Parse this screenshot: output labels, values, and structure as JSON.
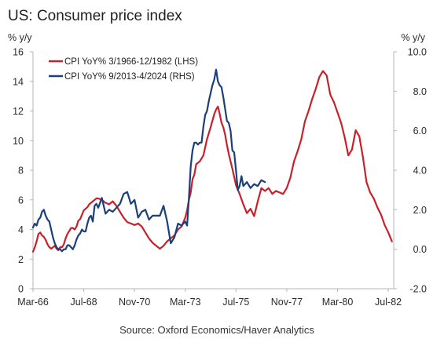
{
  "chart_data": {
    "type": "line",
    "title": "US: Consumer price index",
    "source": "Source: Oxford Economics/Haver Analytics",
    "left_axis": {
      "unit": "% y/y",
      "ylim": [
        0,
        16
      ],
      "ticks": [
        "0",
        "2",
        "4",
        "6",
        "8",
        "10",
        "12",
        "14",
        "16"
      ]
    },
    "right_axis": {
      "unit": "% y/y",
      "ylim": [
        -2,
        10
      ],
      "ticks": [
        "-2.0",
        "0.0",
        "2.0",
        "4.0",
        "6.0",
        "8.0",
        "10.0"
      ]
    },
    "x_axis": {
      "ticks": [
        "Mar-66",
        "Jul-68",
        "Nov-70",
        "Mar-73",
        "Jul-75",
        "Nov-77",
        "Mar-80",
        "Jul-82"
      ],
      "range_months": [
        0,
        199
      ]
    },
    "legend": {
      "placement": "top-left"
    },
    "colors": {
      "lhs": "#c8202a",
      "rhs": "#1b3f7a"
    },
    "series": [
      {
        "name": "CPI YoY% 3/1966-12/1982 (LHS)",
        "axis": "left",
        "x": [
          0,
          1,
          2,
          3,
          4,
          5,
          6,
          7,
          8,
          9,
          10,
          11,
          12,
          13,
          14,
          15,
          16,
          17,
          18,
          19,
          20,
          21,
          22,
          23,
          24,
          25,
          26,
          27,
          28,
          29,
          30,
          31,
          32,
          33,
          34,
          35,
          36,
          38,
          40,
          42,
          44,
          46,
          48,
          50,
          52,
          54,
          56,
          58,
          60,
          62,
          64,
          66,
          68,
          70,
          72,
          74,
          76,
          78,
          80,
          82,
          84,
          85,
          86,
          87,
          88,
          89,
          90,
          92,
          94,
          96,
          98,
          100,
          101,
          102,
          103,
          104,
          105,
          106,
          107,
          108,
          109,
          110,
          112,
          114,
          116,
          118,
          120,
          122,
          124,
          126,
          128,
          130,
          132,
          134,
          136,
          138,
          140,
          142,
          144,
          146,
          148,
          150,
          152,
          154,
          156,
          158,
          160,
          162,
          164,
          166,
          168,
          170,
          172,
          174,
          176,
          178,
          180,
          182,
          184,
          186,
          188,
          190,
          192,
          194,
          196,
          198
        ],
        "values": [
          2.5,
          2.8,
          3.2,
          3.7,
          3.8,
          3.6,
          3.5,
          3.3,
          3.0,
          2.8,
          2.7,
          2.8,
          2.9,
          2.7,
          2.6,
          2.8,
          2.8,
          3.0,
          3.4,
          3.7,
          3.9,
          4.1,
          4.1,
          4.0,
          4.2,
          4.6,
          4.7,
          5.0,
          5.3,
          5.4,
          5.5,
          5.7,
          5.8,
          5.9,
          6.0,
          6.1,
          6.1,
          6.0,
          5.8,
          5.7,
          5.9,
          5.6,
          5.2,
          4.8,
          4.5,
          4.4,
          4.3,
          4.4,
          4.2,
          3.8,
          3.4,
          3.1,
          2.9,
          2.7,
          2.9,
          3.2,
          3.4,
          3.6,
          4.0,
          4.2,
          4.8,
          5.3,
          6.0,
          6.5,
          7.4,
          7.7,
          8.4,
          8.6,
          9.0,
          10.1,
          10.9,
          11.8,
          12.1,
          12.3,
          11.8,
          11.2,
          10.9,
          10.4,
          9.7,
          9.1,
          8.6,
          8.1,
          7.0,
          6.4,
          5.7,
          5.1,
          5.4,
          4.9,
          5.9,
          6.8,
          6.6,
          6.8,
          6.4,
          6.6,
          6.5,
          6.4,
          6.8,
          7.5,
          8.6,
          9.3,
          10.1,
          11.3,
          12.0,
          12.8,
          13.5,
          14.3,
          14.7,
          14.4,
          13.1,
          12.6,
          11.9,
          11.2,
          10.2,
          9.0,
          9.4,
          10.7,
          10.3,
          8.9,
          7.2,
          6.5,
          6.1,
          5.5,
          5.0,
          4.3,
          3.8,
          3.2
        ]
      },
      {
        "name": "CPI YoY% 9/2013-4/2024 (RHS)",
        "axis": "right",
        "x": [
          0,
          1,
          2,
          3,
          4,
          5,
          6,
          7,
          8,
          9,
          10,
          11,
          12,
          13,
          14,
          15,
          16,
          17,
          18,
          19,
          20,
          21,
          22,
          23,
          24,
          25,
          26,
          27,
          28,
          29,
          30,
          31,
          32,
          33,
          34,
          35,
          36,
          38,
          40,
          42,
          44,
          46,
          48,
          50,
          52,
          54,
          56,
          58,
          60,
          62,
          64,
          66,
          68,
          70,
          72,
          74,
          76,
          78,
          80,
          82,
          84,
          85,
          86,
          87,
          88,
          89,
          90,
          91,
          92,
          93,
          94,
          95,
          96,
          97,
          98,
          99,
          100,
          101,
          102,
          103,
          104,
          105,
          106,
          107,
          108,
          109,
          110,
          111,
          112,
          113,
          114,
          115,
          116,
          118,
          120,
          122,
          124,
          126,
          128
        ],
        "values": [
          1.1,
          1.3,
          1.2,
          1.5,
          1.6,
          1.9,
          2.0,
          1.7,
          1.5,
          1.4,
          1.0,
          0.6,
          0.3,
          0.1,
          0.0,
          0.0,
          -0.1,
          0.0,
          0.0,
          0.2,
          0.2,
          0.1,
          0.0,
          0.2,
          0.5,
          0.7,
          0.8,
          1.0,
          0.9,
          0.9,
          1.3,
          1.6,
          1.7,
          1.4,
          2.2,
          2.3,
          2.1,
          2.6,
          1.8,
          2.0,
          1.9,
          2.1,
          2.3,
          2.8,
          2.9,
          2.3,
          2.5,
          1.6,
          1.9,
          2.0,
          1.5,
          1.7,
          1.7,
          1.7,
          2.2,
          1.4,
          0.3,
          0.6,
          1.3,
          1.2,
          1.4,
          1.2,
          2.6,
          4.2,
          5.0,
          5.4,
          5.4,
          5.3,
          5.4,
          5.4,
          6.2,
          6.8,
          7.0,
          7.5,
          7.9,
          8.3,
          8.6,
          9.1,
          8.5,
          8.3,
          8.2,
          7.7,
          7.1,
          6.5,
          6.4,
          6.0,
          5.0,
          4.9,
          4.0,
          3.0,
          3.2,
          3.7,
          3.2,
          3.4,
          3.1,
          3.3,
          3.2,
          3.5,
          3.4
        ]
      }
    ]
  }
}
